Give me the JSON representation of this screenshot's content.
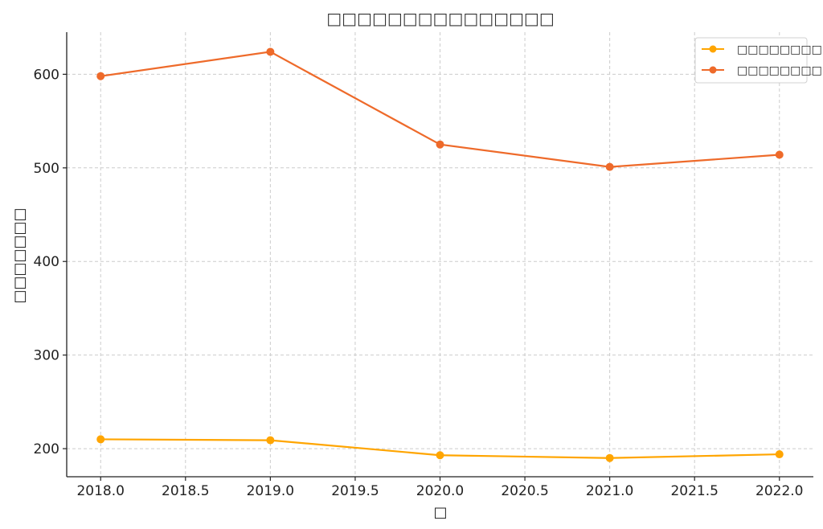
{
  "chart_data": {
    "type": "line",
    "title": "□□□□□□□□□□□□□□□",
    "xlabel": "□",
    "ylabel": "□□□□□□□",
    "xlim": [
      2017.8,
      2022.2
    ],
    "ylim": [
      170,
      645
    ],
    "x_ticks": [
      "2018.0",
      "2018.5",
      "2019.0",
      "2019.5",
      "2020.0",
      "2020.5",
      "2021.0",
      "2021.5",
      "2022.0"
    ],
    "y_ticks": [
      "200",
      "300",
      "400",
      "500",
      "600"
    ],
    "x": [
      2018,
      2019,
      2020,
      2021,
      2022
    ],
    "series": [
      {
        "name": "□□□□□□□□□",
        "color": "#ffa500",
        "values": [
          210,
          209,
          193,
          190,
          194
        ]
      },
      {
        "name": "□□□□□□□□□",
        "color": "#ee6a2a",
        "values": [
          598,
          624,
          525,
          501,
          514
        ]
      }
    ],
    "grid": true,
    "legend_position": "top-right"
  }
}
